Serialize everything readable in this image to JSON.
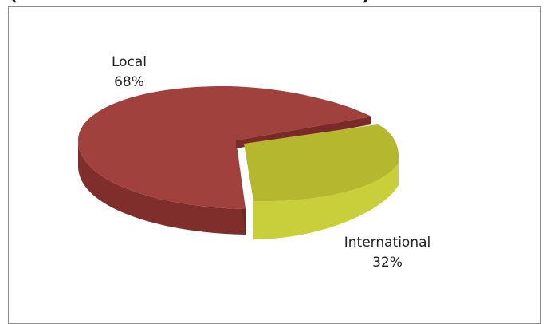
{
  "chart_title_visible_fragment": "(Local vs International)",
  "chart_data": {
    "type": "pie",
    "style": "3d-exploded",
    "slices": [
      {
        "label": "Local",
        "value": 68,
        "value_label": "68%",
        "color": "#a0413d",
        "side_color": "#7f2e2b"
      },
      {
        "label": "International",
        "value": 32,
        "value_label": "32%",
        "color": "#b5b72e",
        "side_color": "#c9cf3a"
      }
    ],
    "legend": "none"
  }
}
